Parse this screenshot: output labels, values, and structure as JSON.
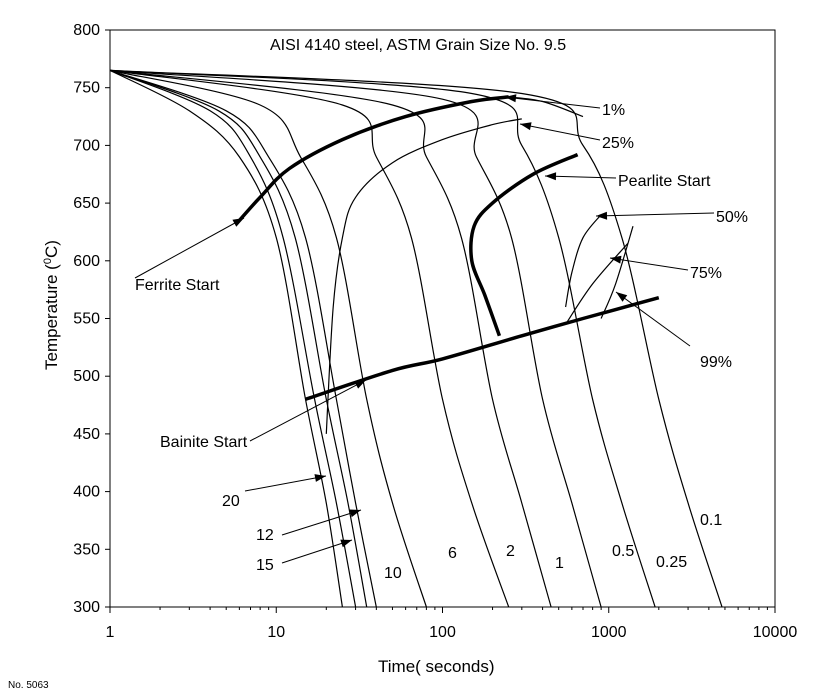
{
  "chart_data": {
    "type": "line",
    "title": "AISI 4140 steel, ASTM Grain Size No. 9.5",
    "xlabel": "Time( seconds)",
    "ylabel_main": "Temperature (",
    "ylabel_sup": "0",
    "ylabel_end": "C)",
    "x_scale": "log",
    "xlim": [
      1,
      10000
    ],
    "ylim": [
      300,
      800
    ],
    "x_ticks": [
      {
        "value": 1,
        "label": "1"
      },
      {
        "value": 10,
        "label": "10"
      },
      {
        "value": 100,
        "label": "100"
      },
      {
        "value": 1000,
        "label": "1000"
      },
      {
        "value": 10000,
        "label": "10000"
      }
    ],
    "y_ticks": [
      {
        "value": 300,
        "label": "300"
      },
      {
        "value": 350,
        "label": "350"
      },
      {
        "value": 400,
        "label": "400"
      },
      {
        "value": 450,
        "label": "450"
      },
      {
        "value": 500,
        "label": "500"
      },
      {
        "value": 550,
        "label": "550"
      },
      {
        "value": 600,
        "label": "600"
      },
      {
        "value": 650,
        "label": "650"
      },
      {
        "value": 700,
        "label": "700"
      },
      {
        "value": 750,
        "label": "750"
      },
      {
        "value": 800,
        "label": "800"
      }
    ],
    "cooling_curves": [
      {
        "label": "20",
        "points": [
          [
            1,
            765
          ],
          [
            3,
            730
          ],
          [
            6,
            690
          ],
          [
            10,
            620
          ],
          [
            15,
            480
          ],
          [
            20,
            390
          ],
          [
            25,
            300
          ]
        ]
      },
      {
        "label": "15",
        "points": [
          [
            1,
            765
          ],
          [
            4,
            730
          ],
          [
            7,
            690
          ],
          [
            11,
            620
          ],
          [
            17,
            480
          ],
          [
            23,
            390
          ],
          [
            30,
            300
          ]
        ]
      },
      {
        "label": "12",
        "points": [
          [
            1,
            765
          ],
          [
            4.5,
            730
          ],
          [
            8,
            690
          ],
          [
            13,
            620
          ],
          [
            20,
            480
          ],
          [
            27,
            390
          ],
          [
            35,
            300
          ]
        ]
      },
      {
        "label": "10",
        "points": [
          [
            1,
            765
          ],
          [
            5,
            730
          ],
          [
            9,
            690
          ],
          [
            15,
            620
          ],
          [
            23,
            480
          ],
          [
            30,
            390
          ],
          [
            40,
            300
          ]
        ]
      },
      {
        "label": "6",
        "points": [
          [
            1,
            765
          ],
          [
            8,
            735
          ],
          [
            14,
            690
          ],
          [
            23,
            620
          ],
          [
            35,
            480
          ],
          [
            50,
            390
          ],
          [
            80,
            300
          ]
        ]
      },
      {
        "label": "2",
        "points": [
          [
            1,
            765
          ],
          [
            25,
            735
          ],
          [
            40,
            690
          ],
          [
            65,
            620
          ],
          [
            100,
            480
          ],
          [
            150,
            390
          ],
          [
            250,
            300
          ]
        ]
      },
      {
        "label": "1",
        "points": [
          [
            1,
            765
          ],
          [
            50,
            735
          ],
          [
            80,
            690
          ],
          [
            130,
            620
          ],
          [
            200,
            480
          ],
          [
            300,
            390
          ],
          [
            450,
            300
          ]
        ]
      },
      {
        "label": "0.5",
        "points": [
          [
            1,
            765
          ],
          [
            100,
            740
          ],
          [
            160,
            690
          ],
          [
            260,
            620
          ],
          [
            400,
            480
          ],
          [
            600,
            390
          ],
          [
            900,
            300
          ]
        ]
      },
      {
        "label": "0.25",
        "points": [
          [
            1,
            765
          ],
          [
            150,
            745
          ],
          [
            300,
            700
          ],
          [
            500,
            620
          ],
          [
            800,
            480
          ],
          [
            1200,
            390
          ],
          [
            1900,
            300
          ]
        ]
      },
      {
        "label": "0.1",
        "points": [
          [
            1,
            765
          ],
          [
            300,
            745
          ],
          [
            700,
            700
          ],
          [
            1200,
            620
          ],
          [
            2000,
            480
          ],
          [
            3000,
            390
          ],
          [
            4800,
            300
          ]
        ]
      }
    ],
    "transformation_curves": [
      {
        "label": "Ferrite Start",
        "points": [
          [
            6,
            635
          ],
          [
            8,
            655
          ],
          [
            12,
            680
          ],
          [
            25,
            705
          ],
          [
            60,
            725
          ],
          [
            150,
            738
          ],
          [
            250,
            742
          ]
        ]
      },
      {
        "label": "1%",
        "points": [
          [
            250,
            742
          ],
          [
            400,
            738
          ],
          [
            700,
            725
          ]
        ]
      },
      {
        "label": "25%",
        "points": [
          [
            20,
            450
          ],
          [
            22,
            560
          ],
          [
            25,
            620
          ],
          [
            30,
            655
          ],
          [
            50,
            685
          ],
          [
            100,
            705
          ],
          [
            200,
            718
          ],
          [
            300,
            723
          ]
        ]
      },
      {
        "label": "Pearlite Start",
        "points": [
          [
            220,
            535
          ],
          [
            180,
            570
          ],
          [
            150,
            600
          ],
          [
            155,
            630
          ],
          [
            200,
            650
          ],
          [
            350,
            675
          ],
          [
            650,
            692
          ]
        ]
      },
      {
        "label": "50%",
        "points": [
          [
            550,
            560
          ],
          [
            600,
            590
          ],
          [
            700,
            620
          ],
          [
            900,
            640
          ]
        ]
      },
      {
        "label": "75%",
        "points": [
          [
            550,
            545
          ],
          [
            800,
            580
          ],
          [
            1300,
            615
          ]
        ]
      },
      {
        "label": "99%",
        "points": [
          [
            900,
            550
          ],
          [
            1100,
            580
          ],
          [
            1400,
            630
          ]
        ]
      },
      {
        "label": "Bainite Start",
        "points": [
          [
            15,
            480
          ],
          [
            50,
            505
          ],
          [
            100,
            515
          ],
          [
            300,
            535
          ],
          [
            700,
            550
          ],
          [
            2000,
            568
          ]
        ]
      }
    ],
    "annotations": [
      {
        "text": "1%",
        "x": 310,
        "y": 740
      },
      {
        "text": "25%",
        "x": 300,
        "y": 715
      },
      {
        "text": "Pearlite Start",
        "x": 650,
        "y": 675
      },
      {
        "text": "50%",
        "x": 900,
        "y": 640
      },
      {
        "text": "75%",
        "x": 1000,
        "y": 600
      },
      {
        "text": "99%",
        "x": 1100,
        "y": 560
      }
    ]
  },
  "footnote": "No. 5063"
}
